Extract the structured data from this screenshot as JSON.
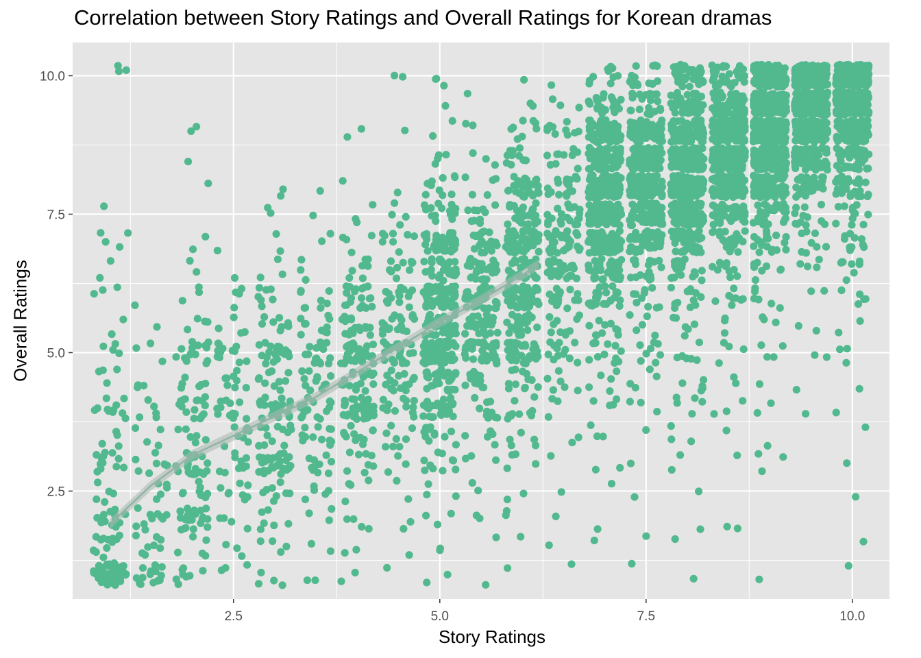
{
  "chart_data": {
    "type": "scatter",
    "title": "Correlation between Story Ratings and Overall Ratings for Korean dramas",
    "xlabel": "Story Ratings",
    "ylabel": "Overall Ratings",
    "xlim": [
      0.55,
      10.45
    ],
    "ylim": [
      0.55,
      10.6
    ],
    "x_ticks": [
      2.5,
      5.0,
      7.5,
      10.0
    ],
    "x_tick_labels": [
      "2.5",
      "5.0",
      "7.5",
      "10.0"
    ],
    "y_ticks": [
      2.5,
      5.0,
      7.5,
      10.0
    ],
    "y_tick_labels": [
      "2.5",
      "5.0",
      "7.5",
      "10.0"
    ],
    "grid": true,
    "legend": "none",
    "colors": {
      "points": "#52b98f",
      "panel": "#e5e5e5",
      "grid": "#ffffff",
      "smooth_line": "#90b4a5",
      "smooth_band": "#a9b8b0"
    },
    "jitter": 0.2,
    "story_levels": [
      1,
      1.5,
      2,
      2.5,
      3,
      3.5,
      4,
      4.5,
      5,
      5.5,
      6,
      6.5,
      7,
      7.5,
      8,
      8.5,
      9,
      9.5,
      10
    ],
    "overall_levels": [
      1,
      1.5,
      2,
      2.5,
      3,
      3.5,
      4,
      4.5,
      5,
      5.5,
      6,
      6.5,
      7,
      7.5,
      8,
      8.5,
      9,
      9.5,
      10
    ],
    "point_count_matrix": [
      [
        50,
        12,
        14,
        5,
        12,
        4,
        12,
        4,
        4,
        2,
        3,
        2,
        2,
        1,
        0,
        0,
        0,
        0,
        1
      ],
      [
        14,
        8,
        10,
        5,
        8,
        4,
        5,
        3,
        3,
        1,
        1,
        0,
        0,
        0,
        0,
        0,
        0,
        0,
        0
      ],
      [
        8,
        5,
        25,
        8,
        20,
        6,
        16,
        6,
        15,
        4,
        3,
        2,
        2,
        0,
        1,
        0,
        1,
        0,
        0
      ],
      [
        3,
        3,
        4,
        8,
        10,
        8,
        12,
        8,
        12,
        4,
        4,
        1,
        1,
        0,
        0,
        0,
        0,
        0,
        0
      ],
      [
        4,
        4,
        6,
        8,
        30,
        12,
        28,
        10,
        20,
        8,
        7,
        3,
        2,
        1,
        1,
        0,
        0,
        0,
        0
      ],
      [
        2,
        2,
        3,
        5,
        10,
        12,
        15,
        12,
        15,
        10,
        8,
        3,
        2,
        1,
        0,
        0,
        0,
        0,
        0
      ],
      [
        2,
        2,
        4,
        4,
        8,
        12,
        40,
        20,
        38,
        18,
        20,
        7,
        4,
        3,
        1,
        0,
        1,
        0,
        0
      ],
      [
        1,
        1,
        2,
        2,
        3,
        8,
        12,
        15,
        25,
        18,
        15,
        10,
        8,
        3,
        1,
        0,
        1,
        0,
        1
      ],
      [
        2,
        2,
        3,
        3,
        10,
        12,
        30,
        28,
        70,
        35,
        60,
        30,
        45,
        15,
        10,
        4,
        2,
        1,
        1
      ],
      [
        1,
        1,
        2,
        2,
        3,
        5,
        10,
        12,
        40,
        30,
        35,
        25,
        25,
        10,
        5,
        3,
        2,
        1,
        0
      ],
      [
        1,
        1,
        2,
        2,
        4,
        5,
        10,
        12,
        40,
        25,
        55,
        30,
        55,
        25,
        30,
        10,
        8,
        2,
        1
      ],
      [
        1,
        1,
        1,
        1,
        1,
        2,
        3,
        6,
        12,
        10,
        15,
        30,
        30,
        20,
        20,
        10,
        10,
        3,
        1
      ],
      [
        0,
        1,
        1,
        1,
        2,
        3,
        4,
        5,
        12,
        10,
        25,
        45,
        70,
        90,
        110,
        75,
        60,
        25,
        10
      ],
      [
        1,
        1,
        0,
        1,
        1,
        1,
        3,
        4,
        8,
        5,
        10,
        20,
        40,
        70,
        90,
        85,
        60,
        20,
        15
      ],
      [
        1,
        1,
        1,
        1,
        2,
        3,
        5,
        5,
        6,
        6,
        12,
        20,
        45,
        100,
        130,
        140,
        100,
        50,
        40
      ],
      [
        0,
        0,
        2,
        0,
        1,
        1,
        3,
        2,
        4,
        3,
        8,
        10,
        25,
        50,
        90,
        130,
        140,
        60,
        35
      ],
      [
        1,
        0,
        0,
        0,
        3,
        1,
        2,
        1,
        4,
        3,
        6,
        8,
        20,
        30,
        90,
        150,
        200,
        170,
        150
      ],
      [
        0,
        0,
        0,
        0,
        0,
        0,
        1,
        1,
        2,
        2,
        2,
        4,
        8,
        12,
        30,
        60,
        120,
        180,
        200
      ],
      [
        1,
        1,
        0,
        1,
        1,
        1,
        1,
        1,
        3,
        2,
        5,
        8,
        10,
        12,
        30,
        50,
        120,
        170,
        200
      ]
    ],
    "outlier_points": [
      [
        1.1,
        10.18
      ],
      [
        1.2,
        10.1
      ],
      [
        2.05,
        9.08
      ],
      [
        1.95,
        8.45
      ],
      [
        4.05,
        9.04
      ],
      [
        4.55,
        9.98
      ],
      [
        4.95,
        9.94
      ],
      [
        5.05,
        9.82
      ],
      [
        1.22,
        7.16
      ],
      [
        0.95,
        7.0
      ],
      [
        3.1,
        7.95
      ],
      [
        2.95,
        7.52
      ],
      [
        3.55,
        7.92
      ],
      [
        4.45,
        7.7
      ]
    ],
    "smooth_line": {
      "x": [
        1.0,
        1.5,
        2.0,
        2.5,
        3.0,
        3.5,
        4.0,
        4.5,
        5.0,
        5.5,
        6.0,
        6.2
      ],
      "y": [
        1.9,
        2.6,
        3.15,
        3.5,
        3.85,
        4.2,
        4.65,
        5.1,
        5.55,
        5.95,
        6.4,
        6.6
      ]
    }
  }
}
